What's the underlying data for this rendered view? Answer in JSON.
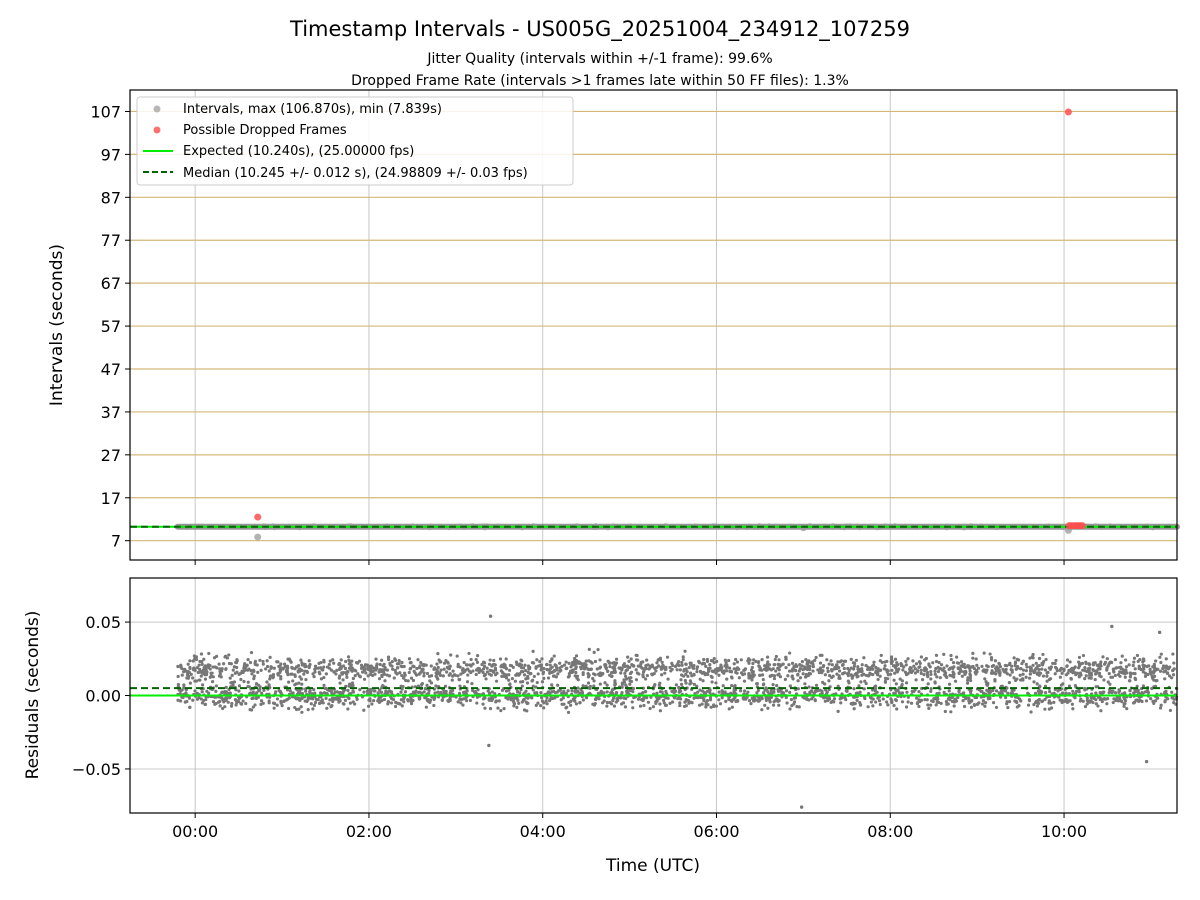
{
  "chart_data": {
    "type": "scatter",
    "title": "Timestamp Intervals - US005G_20251004_234912_107259",
    "subtitle_lines": [
      "Jitter Quality (intervals within +/-1 frame): 99.6%",
      "Dropped Frame Rate (intervals >1 frames late within 50 FF files): 1.3%"
    ],
    "xlabel": "Time (UTC)",
    "xlim_hours": [
      -0.75,
      11.3
    ],
    "x_ticks": [
      {
        "hours": 0,
        "label": "00:00"
      },
      {
        "hours": 2,
        "label": "02:00"
      },
      {
        "hours": 4,
        "label": "04:00"
      },
      {
        "hours": 6,
        "label": "06:00"
      },
      {
        "hours": 8,
        "label": "08:00"
      },
      {
        "hours": 10,
        "label": "10:00"
      }
    ],
    "top_panel": {
      "ylabel": "Intervals (seconds)",
      "ylim": [
        2.5,
        112
      ],
      "y_ticks": [
        7,
        17,
        27,
        37,
        47,
        57,
        67,
        77,
        87,
        97,
        107
      ],
      "y_tick_labels": [
        "7",
        "17",
        "27",
        "37",
        "47",
        "57",
        "67",
        "77",
        "87",
        "97",
        "107"
      ],
      "series": [
        {
          "name": "Intervals, max (106.870s), min (7.839s)",
          "color": "#999999",
          "baseline_seconds": 10.245,
          "x_range_hours": [
            -0.2,
            11.3
          ],
          "outliers": [
            {
              "x": 0.72,
              "y": 7.839
            },
            {
              "x": 10.05,
              "y": 9.4
            },
            {
              "x": 8.85,
              "y": 10.2
            },
            {
              "x": 7.0,
              "y": 10.0
            }
          ]
        },
        {
          "name": "Possible Dropped Frames",
          "color": "#ff4d4d",
          "points": [
            {
              "x": 0.72,
              "y": 12.5
            },
            {
              "x": 10.05,
              "y": 106.87
            },
            {
              "x": 10.06,
              "y": 10.5
            },
            {
              "x": 10.09,
              "y": 10.5
            },
            {
              "x": 10.12,
              "y": 10.5
            },
            {
              "x": 10.15,
              "y": 10.5
            },
            {
              "x": 10.18,
              "y": 10.5
            },
            {
              "x": 10.21,
              "y": 10.5
            }
          ]
        }
      ],
      "expected_line": {
        "name": "Expected (10.240s), (25.00000 fps)",
        "value": 10.24,
        "color": "#00ee00"
      },
      "median_line": {
        "name": "Median (10.245 +/- 0.012 s), (24.98809 +/- 0.03 fps)",
        "value": 10.245,
        "color": "#006400"
      }
    },
    "bottom_panel": {
      "ylabel": "Residuals (seconds)",
      "ylim": [
        -0.08,
        0.08
      ],
      "y_ticks": [
        0.05,
        0.0,
        -0.05
      ],
      "y_tick_labels": [
        "0.05",
        "0.00",
        "−0.05"
      ],
      "expected_value": 0.0,
      "median_value": 0.005,
      "residual_bands": {
        "upper_mean": 0.018,
        "lower_mean": 0.0,
        "spread": 0.006
      },
      "residual_outliers": [
        {
          "x": 3.4,
          "y": 0.054
        },
        {
          "x": 6.98,
          "y": -0.076
        },
        {
          "x": 10.95,
          "y": -0.045
        },
        {
          "x": 10.55,
          "y": 0.047
        },
        {
          "x": 11.1,
          "y": 0.043
        },
        {
          "x": 3.38,
          "y": -0.034
        }
      ],
      "residual_count": 3500
    }
  }
}
